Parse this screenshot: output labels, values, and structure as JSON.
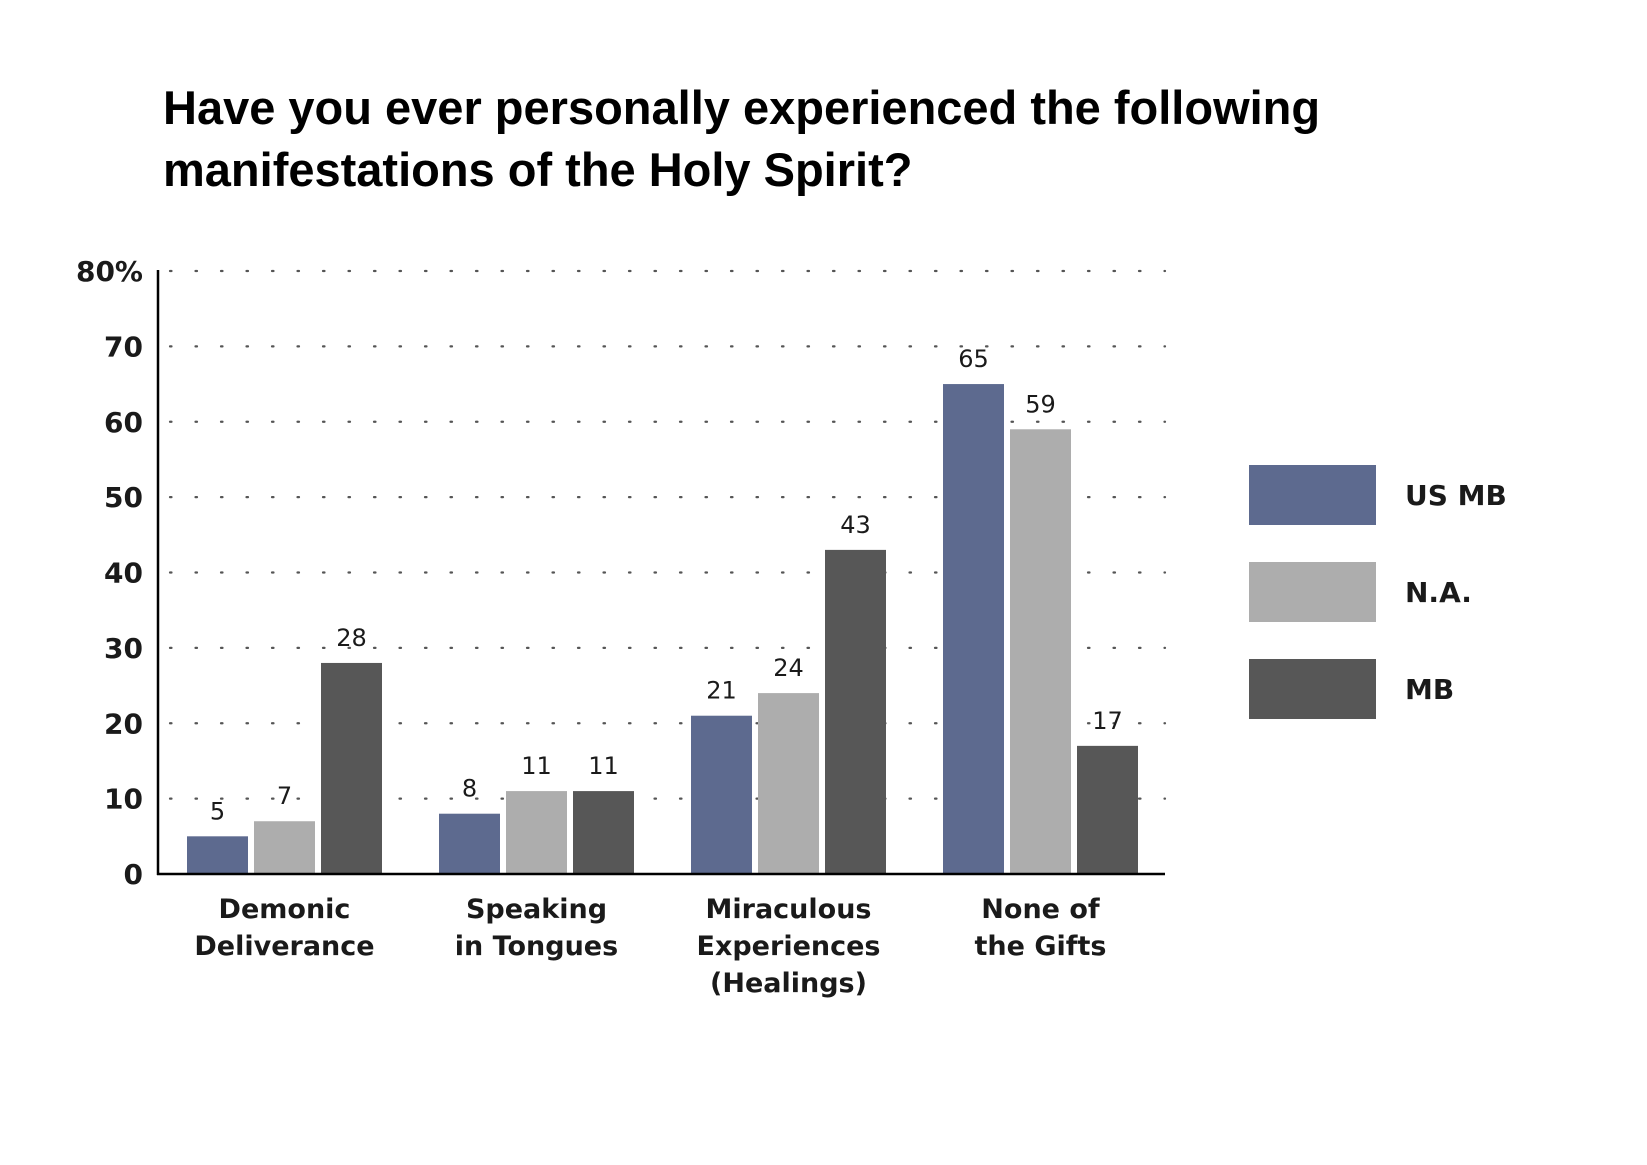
{
  "chart_data": {
    "type": "bar",
    "title_lines": [
      "Have you ever personally experienced the following",
      "manifestations of the Holy Spirit?"
    ],
    "categories": [
      [
        "Demonic",
        "Deliverance"
      ],
      [
        "Speaking",
        "in Tongues"
      ],
      [
        "Miraculous",
        "Experiences",
        "(Healings)"
      ],
      [
        "None of",
        "the Gifts"
      ]
    ],
    "series": [
      {
        "name": "US MB",
        "color": "#5d6a8f",
        "values": [
          5,
          8,
          21,
          65
        ]
      },
      {
        "name": "N.A.",
        "color": "#adadad",
        "values": [
          7,
          11,
          24,
          59
        ]
      },
      {
        "name": "MB",
        "color": "#575757",
        "values": [
          28,
          11,
          43,
          17
        ]
      }
    ],
    "y_ticks": [
      "0",
      "10",
      "20",
      "30",
      "40",
      "50",
      "60",
      "70",
      "80%"
    ],
    "ylim": [
      0,
      80
    ],
    "grid": "dotted horizontal",
    "legend_position": "right"
  }
}
